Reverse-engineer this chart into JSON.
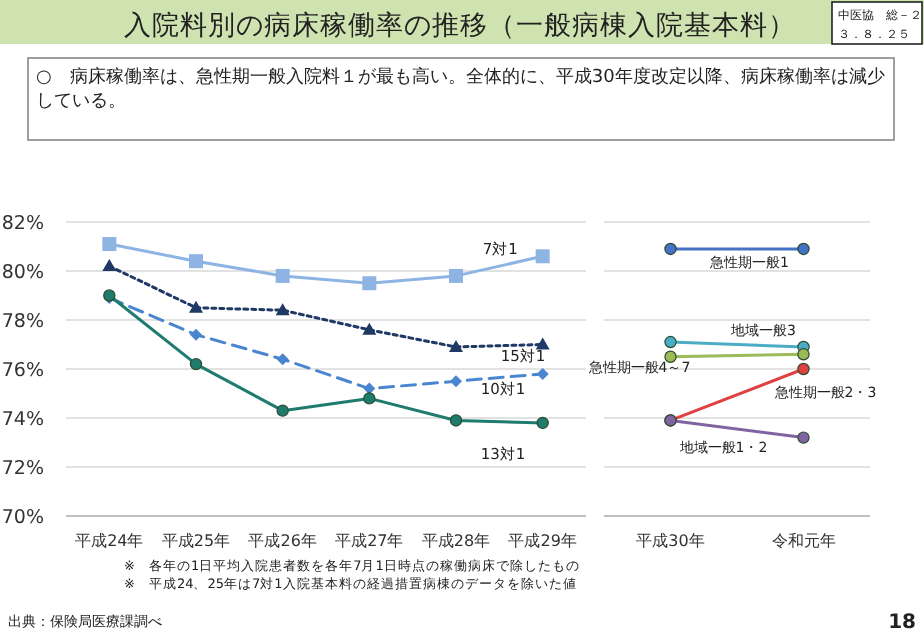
{
  "chart_data": [
    {
      "type": "line",
      "title": "入院料別の病床稼働率の推移（一般病棟入院基本料）",
      "subtitle": "○　病床稼働率は、急性期一般入院料１が最も高い。全体的に、平成30年度改定以降、病床稼働率は減少している。",
      "categories": [
        "平成24年",
        "平成25年",
        "平成26年",
        "平成27年",
        "平成28年",
        "平成29年"
      ],
      "ylim": [
        70,
        82
      ],
      "yticks": [
        {
          "value": 70,
          "label": "70%"
        },
        {
          "value": 72,
          "label": "72%"
        },
        {
          "value": 74,
          "label": "74%"
        },
        {
          "value": 76,
          "label": "76%"
        },
        {
          "value": 78,
          "label": "78%"
        },
        {
          "value": 80,
          "label": "80%"
        },
        {
          "value": 82,
          "label": "82%"
        }
      ],
      "grid": "y",
      "series": [
        {
          "name": "7対1",
          "color": "#8eb4e3",
          "marker": "square",
          "line_style": "solid",
          "values": [
            81.1,
            80.4,
            79.8,
            79.5,
            79.8,
            80.6
          ]
        },
        {
          "name": "15対1",
          "color": "#1f3864",
          "marker": "triangle",
          "line_style": "dotted",
          "values": [
            80.2,
            78.5,
            78.4,
            77.6,
            76.9,
            77.0
          ]
        },
        {
          "name": "10対1",
          "color": "#4a86d0",
          "marker": "diamond",
          "line_style": "dashed",
          "values": [
            78.9,
            77.4,
            76.4,
            75.2,
            75.5,
            75.8
          ]
        },
        {
          "name": "13対1",
          "color": "#1e7b6e",
          "marker": "circle",
          "line_style": "solid",
          "values": [
            79.0,
            76.2,
            74.3,
            74.8,
            73.9,
            73.8
          ]
        }
      ],
      "annotations": [
        "中医協　総－２",
        "３．８．２５",
        "※　各年の1日平均入院患者数を各年7月1日時点の稼働病床で除したもの",
        "※　平成24、25年は7対1入院基本料の経過措置病棟のデータを除いた値",
        "出典：保険局医療課調べ",
        "18"
      ]
    },
    {
      "type": "line",
      "categories": [
        "平成30年",
        "令和元年"
      ],
      "ylim": [
        70,
        82
      ],
      "yticks": [
        70,
        72,
        74,
        76,
        78,
        80,
        82
      ],
      "grid": "y",
      "tick_labels": "x",
      "series": [
        {
          "name": "急性期一般1",
          "color": "#4472c4",
          "marker": "circle",
          "line_style": "solid",
          "values": [
            80.9,
            80.9
          ]
        },
        {
          "name": "地域一般3",
          "color": "#4bacc6",
          "marker": "circle",
          "line_style": "solid",
          "values": [
            77.1,
            76.9
          ]
        },
        {
          "name": "急性期一般4～7",
          "color": "#9bbb59",
          "marker": "circle",
          "line_style": "solid",
          "values": [
            76.5,
            76.6
          ]
        },
        {
          "name": "急性期一般2・3",
          "color": "#e04040",
          "marker": "circle",
          "line_style": "solid",
          "values": [
            73.9,
            76.0
          ]
        },
        {
          "name": "地域一般1・2",
          "color": "#8064a2",
          "marker": "circle",
          "line_style": "solid",
          "values": [
            73.9,
            73.2
          ]
        }
      ]
    }
  ]
}
